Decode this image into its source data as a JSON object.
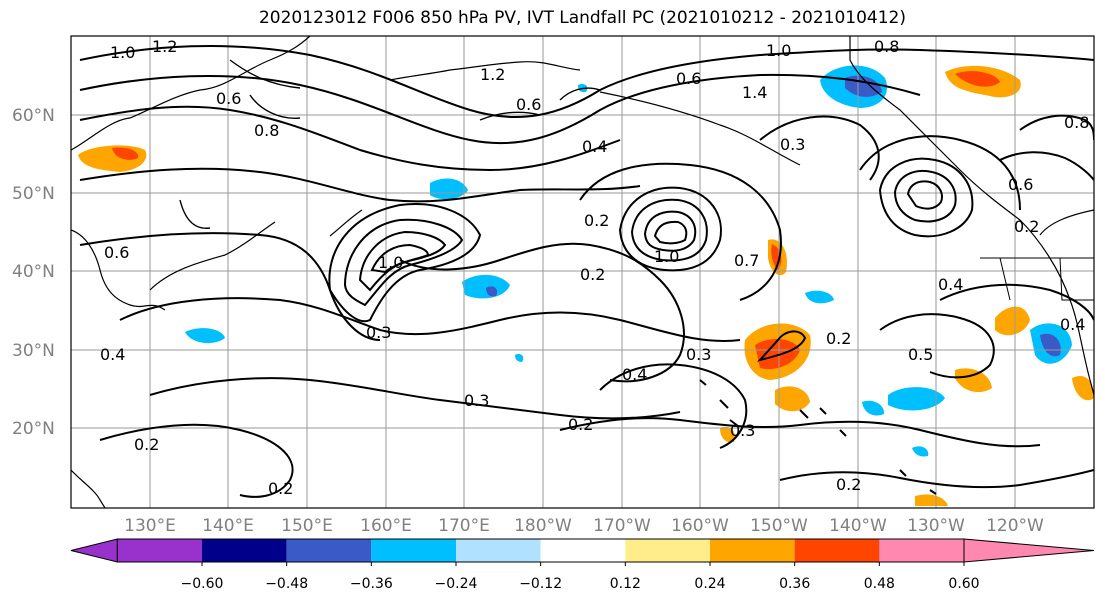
{
  "title": "2020123012 F006 850 hPa PV, IVT Landfall PC (2021010212 - 2021010412)",
  "lat_ticks": [
    "60°N",
    "50°N",
    "40°N",
    "30°N",
    "20°N"
  ],
  "lon_ticks": [
    "130°E",
    "140°E",
    "150°E",
    "160°E",
    "170°E",
    "180°W",
    "170°W",
    "160°W",
    "150°W",
    "140°W",
    "130°W",
    "120°W"
  ],
  "contour_labels": [
    "1.0",
    "1.2",
    "0.8",
    "0.6",
    "0.8",
    "0.6",
    "1.2",
    "0.6",
    "1.0",
    "1.4",
    "0.4",
    "0.3",
    "0.8",
    "0.6",
    "0.2",
    "0.2",
    "1.0",
    "1.0",
    "0.7",
    "0.2",
    "0.3",
    "0.4",
    "0.3",
    "0.2",
    "0.3",
    "0.2",
    "0.2",
    "0.5",
    "0.4",
    "0.4",
    "0.2",
    "0.3",
    "0.2",
    "0.4",
    "0.6"
  ],
  "colorbar": {
    "colors": [
      "#9932cc",
      "#00008b",
      "#3a5bc7",
      "#00bfff",
      "#b0e2ff",
      "#ffffff",
      "#ffec8b",
      "#ffa500",
      "#ff4500",
      "#b22222",
      "#ff88b0"
    ],
    "labels": [
      "-0.60",
      "-0.48",
      "-0.36",
      "-0.24",
      "-0.12",
      "0.12",
      "0.24",
      "0.36",
      "0.48",
      "0.60"
    ]
  }
}
